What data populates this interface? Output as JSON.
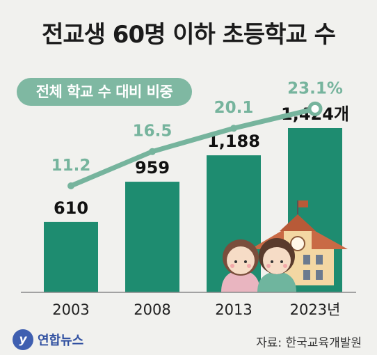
{
  "title": "전교생 60명 이하 초등학교 수",
  "legend_label": "전체 학교 수 대비 비중",
  "source": "자료: 한국교육개발원",
  "logo_text": "연합뉴스",
  "chart_data": {
    "type": "bar",
    "title": "전교생 60명 이하 초등학교 수",
    "categories": [
      "2003",
      "2008",
      "2013",
      "2023"
    ],
    "category_labels": [
      "2003",
      "2008",
      "2013",
      "2023년"
    ],
    "series": [
      {
        "values": [
          610,
          959,
          1188,
          1424
        ],
        "value_labels": [
          "610",
          "959",
          "1,188",
          "1,424개"
        ],
        "color": "#1e8c70"
      },
      {
        "name": "전체 학교 수 대비 비중",
        "type": "line",
        "values": [
          11.2,
          16.5,
          20.1,
          23.1
        ],
        "value_labels": [
          "11.2",
          "16.5",
          "20.1",
          "23.1%"
        ],
        "color": "#76b49d"
      }
    ],
    "grid": false,
    "legend_position": "top-left"
  }
}
